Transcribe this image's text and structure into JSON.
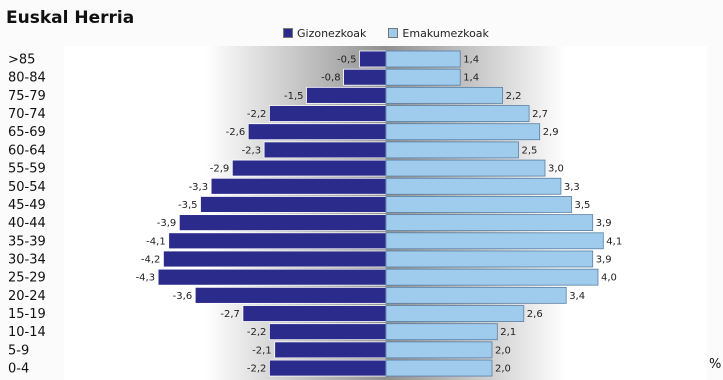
{
  "chart_data": {
    "type": "bar",
    "orientation": "horizontal",
    "subtype": "population-pyramid",
    "title": "Euskal Herria",
    "unit": "%",
    "categories": [
      ">85",
      "80-84",
      "75-79",
      "70-74",
      "65-69",
      "60-64",
      "55-59",
      "50-54",
      "45-49",
      "40-44",
      "35-39",
      "30-34",
      "25-29",
      "20-24",
      "15-19",
      "10-14",
      "5-9",
      "0-4"
    ],
    "series": [
      {
        "name": "Gizonezkoak",
        "color": "#2b2b8c",
        "values": [
          -0.5,
          -0.8,
          -1.5,
          -2.2,
          -2.6,
          -2.3,
          -2.9,
          -3.3,
          -3.5,
          -3.9,
          -4.1,
          -4.2,
          -4.3,
          -3.6,
          -2.7,
          -2.2,
          -2.1,
          -2.2
        ],
        "labels": [
          "-0,5",
          "-0,8",
          "-1,5",
          "-2,2",
          "-2,6",
          "-2,3",
          "-2,9",
          "-3,3",
          "-3,5",
          "-3,9",
          "-4,1",
          "-4,2",
          "-4,3",
          "-3,6",
          "-2,7",
          "-2,2",
          "-2,1",
          "-2,2"
        ]
      },
      {
        "name": "Emakumezkoak",
        "color": "#9fcbec",
        "values": [
          1.4,
          1.4,
          2.2,
          2.7,
          2.9,
          2.5,
          3.0,
          3.3,
          3.5,
          3.9,
          4.1,
          3.9,
          4.0,
          3.4,
          2.6,
          2.1,
          2.0,
          2.0
        ],
        "labels": [
          "1,4",
          "1,4",
          "2,2",
          "2,7",
          "2,9",
          "2,5",
          "3,0",
          "3,3",
          "3,5",
          "3,9",
          "4,1",
          "3,9",
          "4,0",
          "3,4",
          "2,6",
          "2,1",
          "2,0",
          "2,0"
        ]
      }
    ],
    "legend_position": "top",
    "grid": false
  }
}
